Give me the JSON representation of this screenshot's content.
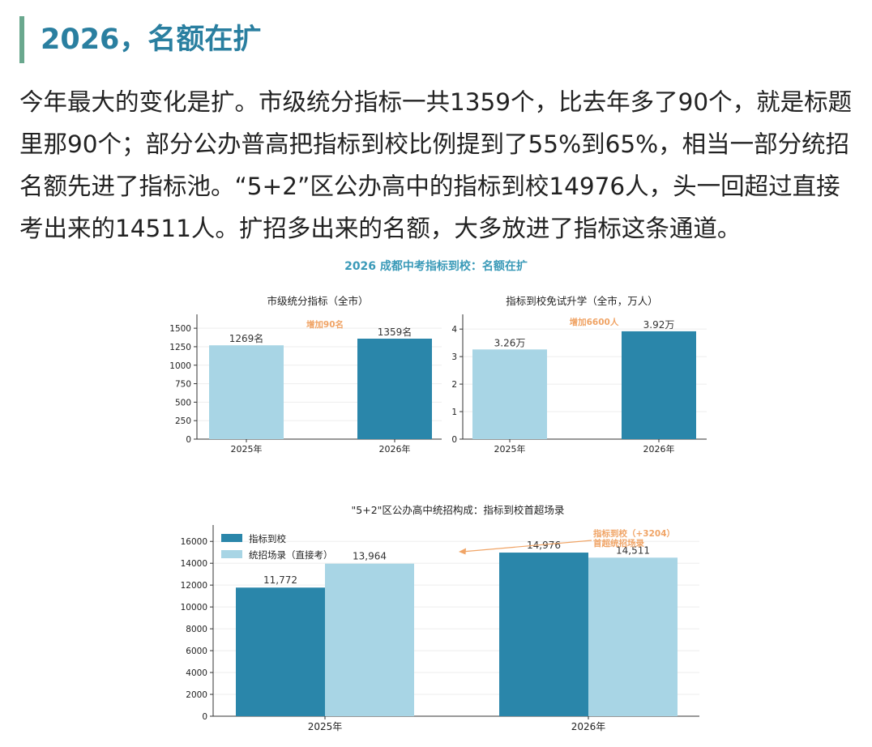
{
  "heading": "2026，名额在扩",
  "paragraph": "今年最大的变化是扩。市级统分指标一共1359个，比去年多了90个，就是标题里那90个；部分公办普高把指标到校比例提到了55%到65%，相当一部分统招名额先进了指标池。“5+2”区公办高中的指标到校14976人，头一回超过直接考出来的14511人。扩招多出来的名额，大多放进了指标这条通道。",
  "figure_title": "2026 成都中考指标到校：名额在扩",
  "colors": {
    "light": "#a8d5e5",
    "dark": "#2a86aa",
    "accent": "#f0a466",
    "heading": "#2a7fa0",
    "bar_border": "#6aa88e"
  },
  "chart_data": [
    {
      "type": "bar",
      "title": "市级统分指标（全市）",
      "categories": [
        "2025年",
        "2026年"
      ],
      "values": [
        1269,
        1359
      ],
      "labels": [
        "1269名",
        "1359名"
      ],
      "ylim": [
        0,
        1600
      ],
      "yticks": [
        0,
        250,
        500,
        750,
        1000,
        1250,
        1500
      ],
      "annotation": "增加90名",
      "grid": true
    },
    {
      "type": "bar",
      "title": "指标到校免试升学（全市，万人）",
      "categories": [
        "2025年",
        "2026年"
      ],
      "values": [
        3.26,
        3.92
      ],
      "labels": [
        "3.26万",
        "3.92万"
      ],
      "ylim": [
        0,
        4.3
      ],
      "yticks": [
        0,
        1,
        2,
        3,
        4
      ],
      "annotation": "增加6600人",
      "grid": true
    },
    {
      "type": "bar",
      "title": "\"5+2\"区公办高中统招构成：指标到校首超场录",
      "categories": [
        "2025年",
        "2026年"
      ],
      "series": [
        {
          "name": "指标到校",
          "values": [
            11772,
            14976
          ],
          "labels": [
            "11,772",
            "14,976"
          ]
        },
        {
          "name": "统招场录（直接考）",
          "values": [
            13964,
            14511
          ],
          "labels": [
            "13,964",
            "14,511"
          ]
        }
      ],
      "ylim": [
        0,
        17500
      ],
      "yticks": [
        0,
        2000,
        4000,
        6000,
        8000,
        10000,
        12000,
        14000,
        16000
      ],
      "legend": "top-left",
      "annotation_lines": [
        "指标到校（+3204）",
        "首超统招场录"
      ],
      "grid": true
    }
  ]
}
